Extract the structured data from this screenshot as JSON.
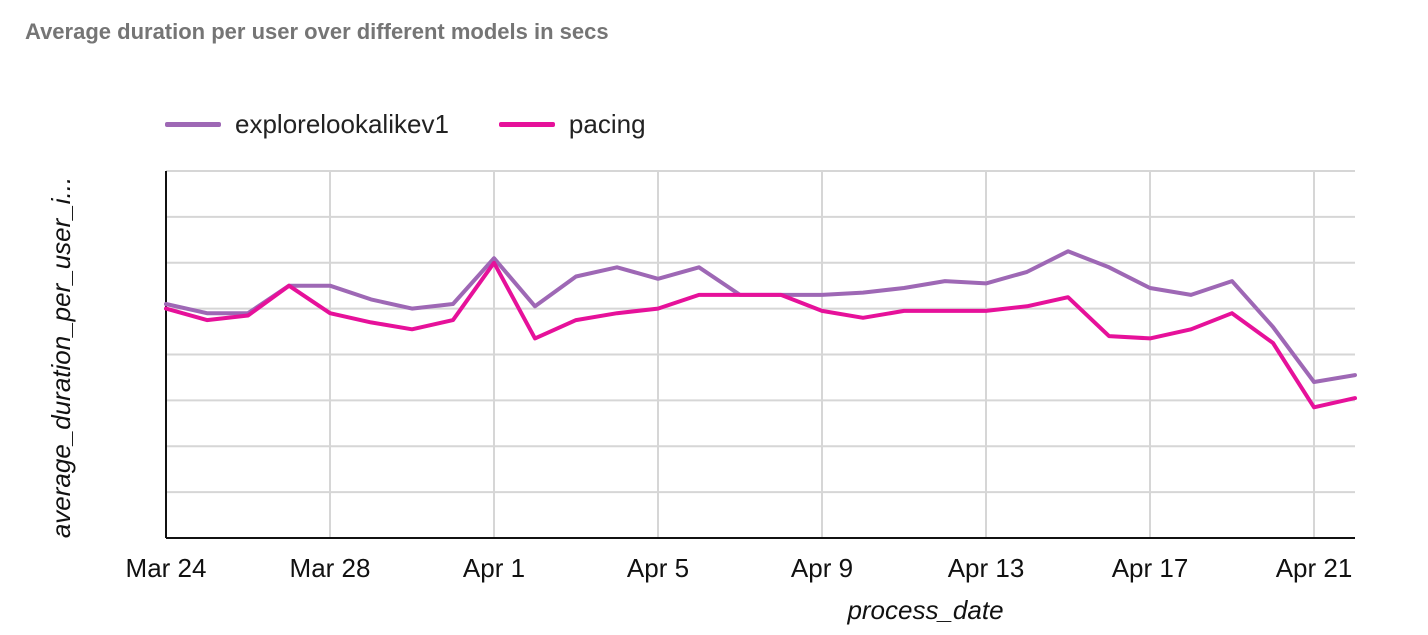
{
  "chart_data": {
    "type": "line",
    "title": "Average duration per user over different models in secs",
    "xlabel": "process_date",
    "ylabel": "average_duration_per_user_i...",
    "x": [
      "Mar 24",
      "Mar 25",
      "Mar 26",
      "Mar 27",
      "Mar 28",
      "Mar 29",
      "Mar 30",
      "Mar 31",
      "Apr 1",
      "Apr 2",
      "Apr 3",
      "Apr 4",
      "Apr 5",
      "Apr 6",
      "Apr 7",
      "Apr 8",
      "Apr 9",
      "Apr 10",
      "Apr 11",
      "Apr 12",
      "Apr 13",
      "Apr 14",
      "Apr 15",
      "Apr 16",
      "Apr 17",
      "Apr 18",
      "Apr 19",
      "Apr 20",
      "Apr 21",
      "Apr 22"
    ],
    "xticks": [
      "Mar 24",
      "Mar 28",
      "Apr 1",
      "Apr 5",
      "Apr 9",
      "Apr 13",
      "Apr 17",
      "Apr 21"
    ],
    "ylim": [
      0,
      8
    ],
    "y_tick_labels_shown": false,
    "grid": true,
    "legend_position": "top-left",
    "series": [
      {
        "name": "explorelookalikev1",
        "color": "#9e68b5",
        "values": [
          5.1,
          4.9,
          4.9,
          5.5,
          5.5,
          5.2,
          5.0,
          5.1,
          6.1,
          5.05,
          5.7,
          5.9,
          5.65,
          5.9,
          5.3,
          5.3,
          5.3,
          5.35,
          5.45,
          5.6,
          5.55,
          5.8,
          6.25,
          5.9,
          5.45,
          5.3,
          5.6,
          4.6,
          3.4,
          3.55
        ]
      },
      {
        "name": "pacing",
        "color": "#e6119a",
        "values": [
          5.0,
          4.75,
          4.85,
          5.5,
          4.9,
          4.7,
          4.55,
          4.75,
          6.0,
          4.35,
          4.75,
          4.9,
          5.0,
          5.3,
          5.3,
          5.3,
          4.95,
          4.8,
          4.95,
          4.95,
          4.95,
          5.05,
          5.25,
          4.4,
          4.35,
          4.55,
          4.9,
          4.25,
          2.85,
          3.05
        ]
      }
    ]
  }
}
